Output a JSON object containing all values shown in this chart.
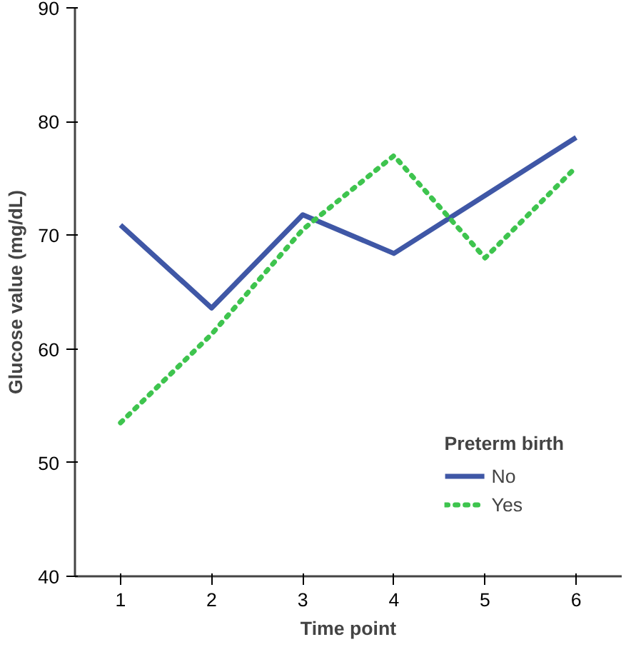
{
  "chart_data": {
    "type": "line",
    "xlabel": "Time point",
    "ylabel": "Glucose value (mg/dL)",
    "legend_title": "Preterm birth",
    "x": [
      1,
      2,
      3,
      4,
      5,
      6
    ],
    "xlim": [
      0.5,
      6.5
    ],
    "xticks": [
      1,
      2,
      3,
      4,
      5,
      6
    ],
    "ylim": [
      40,
      90
    ],
    "yticks": [
      40,
      50,
      60,
      70,
      80,
      90
    ],
    "grid": false,
    "legend": "bottom right",
    "series": [
      {
        "name": "No",
        "color": "#3f57a6",
        "values": [
          70.9,
          63.6,
          71.8,
          68.4,
          73.5,
          78.6
        ],
        "line_style": "solid"
      },
      {
        "name": "Yes",
        "color": "#3ec44e",
        "values": [
          53.5,
          61.3,
          70.5,
          77.0,
          68.0,
          76.0
        ],
        "line_style": "dotted"
      }
    ]
  }
}
